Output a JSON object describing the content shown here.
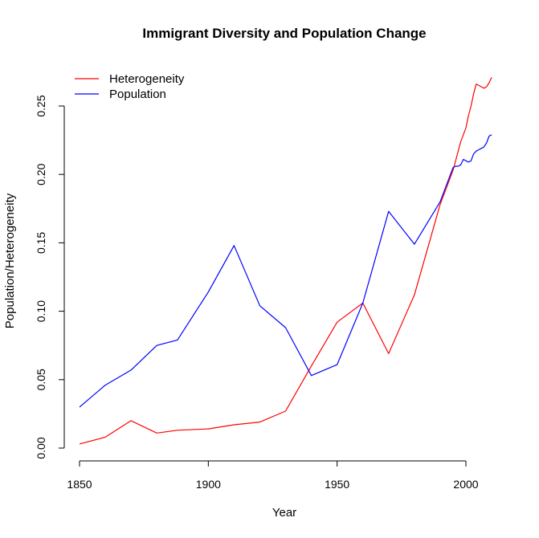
{
  "chart_data": {
    "type": "line",
    "title": "Immigrant Diversity and Population Change",
    "xlabel": "Year",
    "ylabel": "Population/Heterogeneity",
    "xlim": [
      1850,
      2010
    ],
    "ylim": [
      0.0,
      0.26
    ],
    "x_ticks": [
      1850,
      1900,
      1950,
      2000
    ],
    "y_ticks": [
      0.0,
      0.05,
      0.1,
      0.15,
      0.2,
      0.25
    ],
    "y_tick_labels": [
      "0.00",
      "0.05",
      "0.10",
      "0.15",
      "0.20",
      "0.25"
    ],
    "grid": false,
    "legend_position": "top-left",
    "series": [
      {
        "name": "Heterogeneity",
        "color": "#ff0000",
        "x": [
          1850,
          1860,
          1870,
          1880,
          1888,
          1900,
          1910,
          1920,
          1930,
          1940,
          1950,
          1960,
          1970,
          1980,
          1990,
          1995,
          1998,
          2000,
          2001,
          2002,
          2003,
          2004,
          2005,
          2006,
          2007,
          2008,
          2009,
          2010
        ],
        "y": [
          0.003,
          0.008,
          0.02,
          0.011,
          0.013,
          0.014,
          0.017,
          0.019,
          0.027,
          0.06,
          0.092,
          0.106,
          0.069,
          0.112,
          0.178,
          0.203,
          0.224,
          0.234,
          0.243,
          0.25,
          0.259,
          0.266,
          0.265,
          0.264,
          0.263,
          0.264,
          0.267,
          0.271
        ]
      },
      {
        "name": "Population",
        "color": "#0000ff",
        "x": [
          1850,
          1860,
          1870,
          1880,
          1888,
          1900,
          1910,
          1920,
          1930,
          1940,
          1950,
          1960,
          1970,
          1980,
          1990,
          1995,
          1996,
          1997,
          1998,
          1999,
          2000,
          2001,
          2002,
          2003,
          2004,
          2005,
          2006,
          2007,
          2008,
          2009,
          2010
        ],
        "y": [
          0.03,
          0.046,
          0.057,
          0.075,
          0.079,
          0.114,
          0.148,
          0.104,
          0.088,
          0.053,
          0.061,
          0.106,
          0.173,
          0.149,
          0.18,
          0.205,
          0.206,
          0.206,
          0.207,
          0.211,
          0.21,
          0.209,
          0.21,
          0.215,
          0.217,
          0.218,
          0.219,
          0.22,
          0.223,
          0.228,
          0.229
        ]
      }
    ]
  }
}
